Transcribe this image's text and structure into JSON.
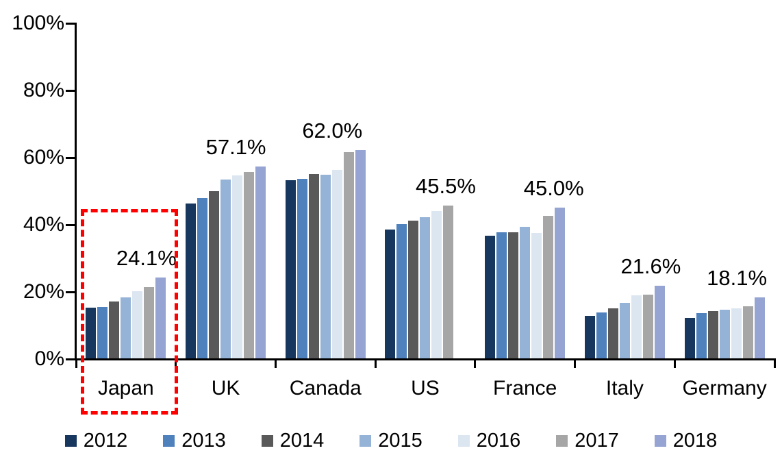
{
  "chart_data": {
    "type": "bar",
    "title": "",
    "xlabel": "",
    "ylabel": "",
    "ylim": [
      0,
      100
    ],
    "yticks": [
      "0%",
      "20%",
      "40%",
      "60%",
      "80%",
      "100%"
    ],
    "grid": false,
    "legend_position": "bottom",
    "categories": [
      "Japan",
      "UK",
      "Canada",
      "US",
      "France",
      "Italy",
      "Germany"
    ],
    "series": [
      {
        "name": "2012",
        "color": "#17375E",
        "values": [
          15.1,
          46.2,
          53.0,
          38.4,
          36.5,
          12.6,
          12.0
        ]
      },
      {
        "name": "2013",
        "color": "#4F81BD",
        "values": [
          15.3,
          47.8,
          53.4,
          40.0,
          37.6,
          13.7,
          13.5
        ]
      },
      {
        "name": "2014",
        "color": "#595959",
        "values": [
          16.9,
          49.9,
          54.9,
          41.1,
          37.5,
          15.0,
          14.0
        ]
      },
      {
        "name": "2015",
        "color": "#95B3D7",
        "values": [
          18.2,
          53.3,
          54.6,
          42.1,
          39.2,
          16.6,
          14.4
        ]
      },
      {
        "name": "2016",
        "color": "#DCE6F1",
        "values": [
          20.0,
          54.5,
          56.1,
          43.8,
          37.3,
          18.7,
          15.0
        ]
      },
      {
        "name": "2017",
        "color": "#A6A6A6",
        "values": [
          21.3,
          55.6,
          61.5,
          45.5,
          42.5,
          18.9,
          15.5
        ]
      },
      {
        "name": "2018",
        "color": "#95A4D2",
        "values": [
          24.1,
          57.1,
          62.0,
          null,
          45.0,
          21.6,
          18.1
        ]
      }
    ],
    "data_labels": [
      {
        "category": "Japan",
        "text": "24.1%"
      },
      {
        "category": "UK",
        "text": "57.1%"
      },
      {
        "category": "Canada",
        "text": "62.0%"
      },
      {
        "category": "US",
        "text": "45.5%"
      },
      {
        "category": "France",
        "text": "45.0%"
      },
      {
        "category": "Italy",
        "text": "21.6%"
      },
      {
        "category": "Germany",
        "text": "18.1%"
      }
    ],
    "highlight": {
      "category": "Japan",
      "shape": "red-dashed-rectangle",
      "color": "#FF0000"
    }
  }
}
